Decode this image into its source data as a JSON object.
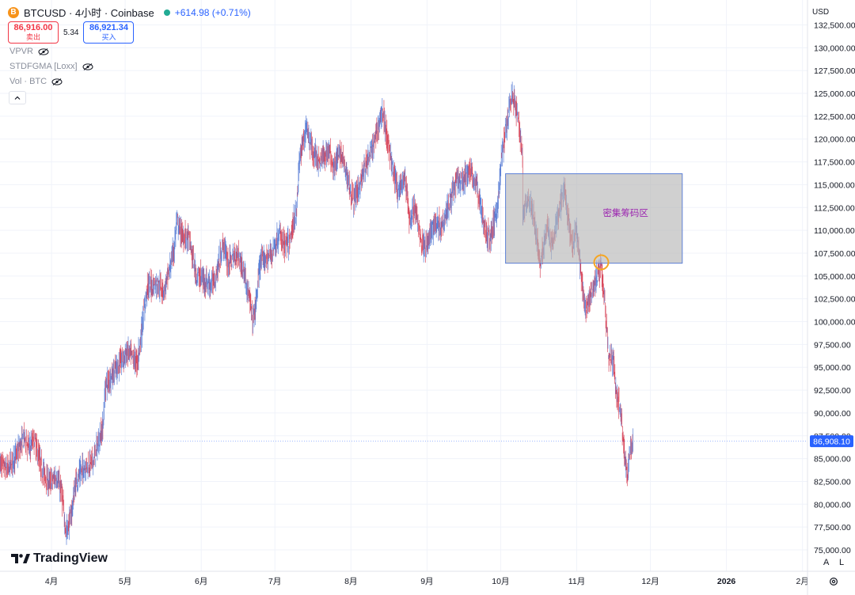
{
  "header": {
    "symbol": "BTCUSD · 4小时 · Coinbase",
    "coin_icon": "B",
    "change": "+614.98 (+0.71%)"
  },
  "trade": {
    "sell_price": "86,916.00",
    "sell_label": "卖出",
    "spread": "5.34",
    "buy_price": "86,921.34",
    "buy_label": "买入"
  },
  "indicators": [
    {
      "label": "VPVR"
    },
    {
      "label": "STDFGMA [Loxx]"
    },
    {
      "label": "Vol · BTC"
    }
  ],
  "collapse_icon": "chevron-up-icon",
  "currency": "USD",
  "logo": "TradingView",
  "axis_controls": {
    "auto": "A",
    "log": "L"
  },
  "colors": {
    "up": "#5b7fd6",
    "down": "#d84a5e",
    "zone": "#b7b7b7",
    "zone_border": "#5b7fd6",
    "marker": "#f5a623",
    "price_tag": "#2962ff"
  },
  "chart_data": {
    "type": "candlestick",
    "title": "",
    "xlabel": "",
    "ylabel": "",
    "ylim": [
      74000,
      133200
    ],
    "y_ticks": [
      132500,
      130000,
      127500,
      125000,
      122500,
      120000,
      117500,
      115000,
      112500,
      110000,
      107500,
      105000,
      102500,
      100000,
      97500,
      95000,
      92500,
      90000,
      87500,
      85000,
      82500,
      80000,
      77500,
      75000
    ],
    "y_tick_labels": [
      "132,500.00",
      "130,000.00",
      "127,500.00",
      "125,000.00",
      "122,500.00",
      "120,000.00",
      "117,500.00",
      "115,000.00",
      "112,500.00",
      "110,000.00",
      "107,500.00",
      "105,000.00",
      "102,500.00",
      "100,000.00",
      "97,500.00",
      "95,000.00",
      "92,500.00",
      "90,000.00",
      "87,500.00",
      "85,000.00",
      "82,500.00",
      "80,000.00",
      "77,500.00",
      "75,000.00"
    ],
    "x_range": [
      "2025-03-11",
      "2026-02-20"
    ],
    "x_ticks": [
      {
        "date": "2025-04-01",
        "label": "4月"
      },
      {
        "date": "2025-05-01",
        "label": "5月"
      },
      {
        "date": "2025-06-01",
        "label": "6月"
      },
      {
        "date": "2025-07-01",
        "label": "7月"
      },
      {
        "date": "2025-08-01",
        "label": "8月"
      },
      {
        "date": "2025-09-01",
        "label": "9月"
      },
      {
        "date": "2025-10-01",
        "label": "10月"
      },
      {
        "date": "2025-11-01",
        "label": "11月"
      },
      {
        "date": "2025-12-01",
        "label": "12月"
      },
      {
        "date": "2026-01-01",
        "label": "2026"
      },
      {
        "date": "2026-02-01",
        "label": "2月"
      }
    ],
    "series": [
      {
        "values": [
          [
            "2025-03-11",
            84500
          ],
          [
            "2025-03-14",
            83700
          ],
          [
            "2025-03-18",
            85600
          ],
          [
            "2025-03-21",
            87400
          ],
          [
            "2025-03-23",
            86100
          ],
          [
            "2025-03-25",
            87200
          ],
          [
            "2025-03-28",
            83900
          ],
          [
            "2025-03-31",
            82300
          ],
          [
            "2025-04-03",
            83000
          ],
          [
            "2025-04-05",
            81500
          ],
          [
            "2025-04-07",
            76800
          ],
          [
            "2025-04-09",
            78800
          ],
          [
            "2025-04-11",
            82500
          ],
          [
            "2025-04-14",
            84000
          ],
          [
            "2025-04-18",
            84700
          ],
          [
            "2025-04-22",
            88500
          ],
          [
            "2025-04-23",
            93000
          ],
          [
            "2025-04-26",
            94300
          ],
          [
            "2025-04-28",
            95100
          ],
          [
            "2025-05-02",
            96700
          ],
          [
            "2025-05-06",
            95500
          ],
          [
            "2025-05-08",
            99500
          ],
          [
            "2025-05-10",
            103800
          ],
          [
            "2025-05-14",
            104200
          ],
          [
            "2025-05-17",
            103400
          ],
          [
            "2025-05-19",
            105600
          ],
          [
            "2025-05-21",
            108000
          ],
          [
            "2025-05-22",
            111000
          ],
          [
            "2025-05-24",
            109500
          ],
          [
            "2025-05-27",
            109100
          ],
          [
            "2025-05-30",
            105100
          ],
          [
            "2025-06-01",
            104800
          ],
          [
            "2025-06-05",
            104000
          ],
          [
            "2025-06-07",
            105000
          ],
          [
            "2025-06-10",
            108500
          ],
          [
            "2025-06-12",
            106400
          ],
          [
            "2025-06-16",
            107500
          ],
          [
            "2025-06-19",
            104900
          ],
          [
            "2025-06-22",
            100300
          ],
          [
            "2025-06-23",
            101200
          ],
          [
            "2025-06-25",
            106500
          ],
          [
            "2025-06-29",
            107200
          ],
          [
            "2025-07-03",
            109500
          ],
          [
            "2025-07-05",
            108300
          ],
          [
            "2025-07-07",
            108600
          ],
          [
            "2025-07-10",
            112500
          ],
          [
            "2025-07-11",
            117700
          ],
          [
            "2025-07-14",
            121500
          ],
          [
            "2025-07-16",
            118900
          ],
          [
            "2025-07-19",
            117500
          ],
          [
            "2025-07-23",
            118800
          ],
          [
            "2025-07-25",
            117000
          ],
          [
            "2025-07-28",
            118500
          ],
          [
            "2025-08-02",
            113200
          ],
          [
            "2025-08-04",
            114500
          ],
          [
            "2025-08-07",
            117000
          ],
          [
            "2025-08-10",
            119000
          ],
          [
            "2025-08-13",
            122500
          ],
          [
            "2025-08-14",
            123000
          ],
          [
            "2025-08-17",
            118200
          ],
          [
            "2025-08-20",
            114300
          ],
          [
            "2025-08-23",
            115800
          ],
          [
            "2025-08-25",
            110900
          ],
          [
            "2025-08-27",
            112500
          ],
          [
            "2025-08-30",
            108600
          ],
          [
            "2025-09-01",
            108400
          ],
          [
            "2025-09-04",
            110800
          ],
          [
            "2025-09-07",
            110500
          ],
          [
            "2025-09-10",
            113000
          ],
          [
            "2025-09-13",
            115400
          ],
          [
            "2025-09-16",
            115200
          ],
          [
            "2025-09-18",
            116800
          ],
          [
            "2025-09-21",
            115200
          ],
          [
            "2025-09-23",
            112500
          ],
          [
            "2025-09-25",
            109500
          ],
          [
            "2025-09-27",
            109300
          ],
          [
            "2025-09-30",
            113000
          ],
          [
            "2025-10-01",
            117000
          ],
          [
            "2025-10-03",
            121000
          ],
          [
            "2025-10-05",
            124300
          ],
          [
            "2025-10-06",
            124700
          ],
          [
            "2025-10-08",
            122500
          ],
          [
            "2025-10-10",
            118000
          ],
          [
            "2025-10-10",
            111500
          ],
          [
            "2025-10-12",
            113500
          ],
          [
            "2025-10-14",
            112000
          ],
          [
            "2025-10-16",
            108500
          ],
          [
            "2025-10-17",
            106500
          ],
          [
            "2025-10-20",
            110300
          ],
          [
            "2025-10-22",
            108200
          ],
          [
            "2025-10-24",
            111000
          ],
          [
            "2025-10-27",
            114500
          ],
          [
            "2025-10-30",
            108200
          ],
          [
            "2025-11-01",
            109800
          ],
          [
            "2025-11-04",
            102000
          ],
          [
            "2025-11-05",
            101600
          ],
          [
            "2025-11-07",
            103000
          ],
          [
            "2025-11-09",
            104800
          ],
          [
            "2025-11-11",
            106000
          ],
          [
            "2025-11-12",
            103300
          ],
          [
            "2025-11-14",
            96500
          ],
          [
            "2025-11-16",
            95500
          ],
          [
            "2025-11-17",
            92500
          ],
          [
            "2025-11-18",
            91600
          ],
          [
            "2025-11-19",
            89800
          ],
          [
            "2025-11-20",
            86500
          ],
          [
            "2025-11-21",
            84500
          ],
          [
            "2025-11-22",
            82200
          ],
          [
            "2025-11-22",
            84500
          ],
          [
            "2025-11-23",
            86100
          ],
          [
            "2025-11-24",
            86908
          ]
        ]
      }
    ],
    "current_price_label": "86,908.10",
    "annotations": [
      {
        "type": "zone",
        "label": "密集筹码区",
        "x": [
          "2025-10-03",
          "2025-12-14"
        ],
        "y": [
          106400,
          116200
        ]
      },
      {
        "type": "marker",
        "x": "2025-11-11",
        "y": 106500
      }
    ]
  }
}
